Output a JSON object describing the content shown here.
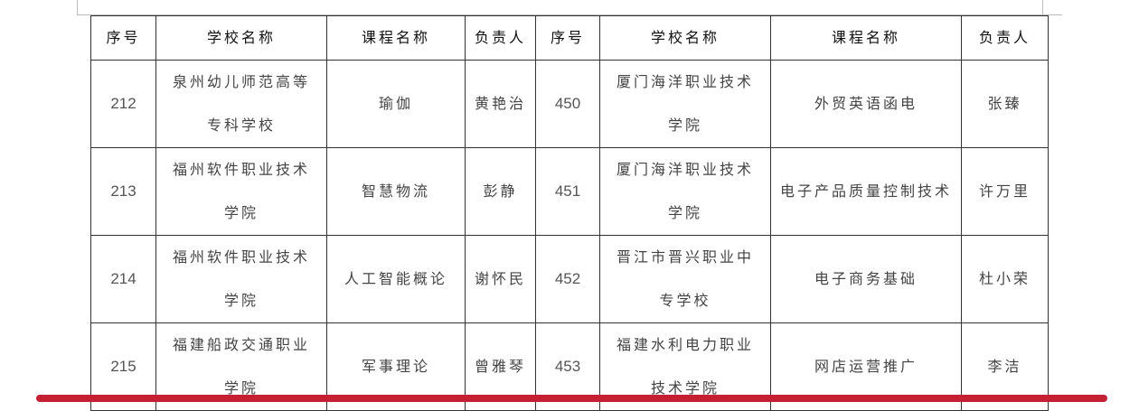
{
  "headers": [
    "序号",
    "学校名称",
    "课程名称",
    "负责人",
    "序号",
    "学校名称",
    "课程名称",
    "负责人"
  ],
  "rows": [
    [
      "212",
      "泉州幼儿师范高等专科学校",
      "瑜伽",
      "黄艳治",
      "450",
      "厦门海洋职业技术学院",
      "外贸英语函电",
      "张臻"
    ],
    [
      "213",
      "福州软件职业技术学院",
      "智慧物流",
      "彭静",
      "451",
      "厦门海洋职业技术学院",
      "电子产品质量控制技术",
      "许万里"
    ],
    [
      "214",
      "福州软件职业技术学院",
      "人工智能概论",
      "谢怀民",
      "452",
      "晋江市晋兴职业中专学校",
      "电子商务基础",
      "杜小荣"
    ],
    [
      "215",
      "福建船政交通职业学院",
      "军事理论",
      "曾雅琴",
      "453",
      "福建水利电力职业技术学院",
      "网店运营推广",
      "李洁"
    ]
  ],
  "colors": {
    "annotation_line": "#c41f33"
  }
}
